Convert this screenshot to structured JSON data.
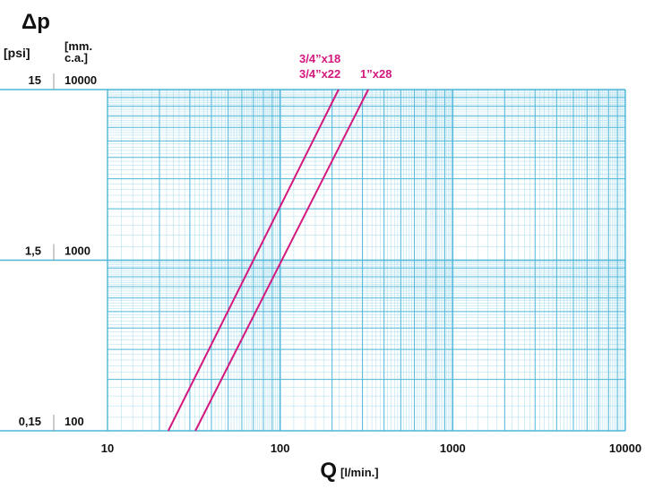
{
  "chart_data": {
    "type": "line",
    "y_label": "Δp",
    "y2_unit": "[psi]",
    "y_unit_lines": [
      "[mm.",
      "c.a.]"
    ],
    "x_label": "Q",
    "x_unit": "[l/min.]",
    "log_x": true,
    "log_y": true,
    "grid": true,
    "grid_color": "#4db6d9",
    "xlim": [
      10,
      10000
    ],
    "xticks": [
      10,
      100,
      1000,
      10000
    ],
    "ylim": [
      100,
      10000
    ],
    "yticks": [
      100,
      1000,
      10000
    ],
    "y2lim": [
      0.15,
      15
    ],
    "y2ticks": [
      {
        "value": 0.15,
        "label": "0,15"
      },
      {
        "value": 1.5,
        "label": "1,5"
      },
      {
        "value": 15,
        "label": "15"
      }
    ],
    "series": [
      {
        "labels": [
          "3/4”x18",
          "3/4”x22"
        ],
        "color": "#d4187e",
        "x": [
          22.5,
          218
        ],
        "values": [
          100,
          10000
        ]
      },
      {
        "labels": [
          "1”x28"
        ],
        "color": "#d4187e",
        "x": [
          32.3,
          324
        ],
        "values": [
          100,
          10000
        ]
      }
    ]
  }
}
